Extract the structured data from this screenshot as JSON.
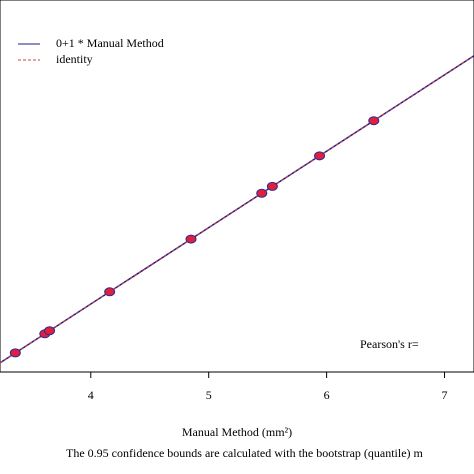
{
  "chart_data": {
    "type": "scatter",
    "x_label": "Manual Method (mm²)",
    "caption": "The 0.95 confidence bounds are calculated with the bootstrap (quantile) m",
    "annotation": "Pearson's r=",
    "x": [
      3.36,
      3.61,
      3.65,
      4.16,
      4.85,
      5.45,
      5.54,
      5.94,
      6.4
    ],
    "values": [
      3.36,
      3.61,
      3.65,
      4.16,
      4.85,
      5.45,
      5.54,
      5.94,
      6.4
    ],
    "color": "#e0203a",
    "edge_color": "#2a2a9a",
    "lines": [
      {
        "name": "0+1 * Manual Method",
        "color": "#1c1c86",
        "intercept": 0,
        "slope": 1,
        "dashed": false
      },
      {
        "name": "identity",
        "color": "#d04040",
        "intercept": 0,
        "slope": 1,
        "dashed": true
      }
    ],
    "xlim": [
      3.23,
      7.25
    ],
    "xticks": [
      4,
      5,
      6,
      7
    ],
    "ylim": [
      3.11,
      7.98
    ]
  }
}
